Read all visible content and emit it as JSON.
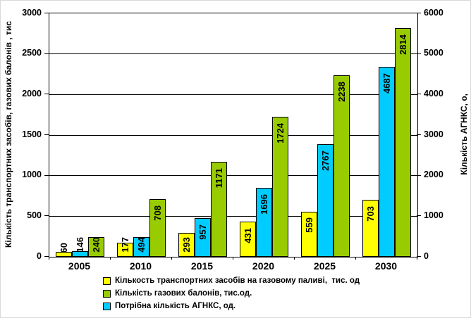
{
  "chart_data": {
    "type": "bar",
    "title": "",
    "categories": [
      "2005",
      "2010",
      "2015",
      "2020",
      "2025",
      "2030"
    ],
    "series": [
      {
        "name": "Кількость транспортних засобів на газовому паливі,  тис. од",
        "color": "#FFFF00",
        "axis": "left",
        "plot_position": 0,
        "values": [
          60,
          177,
          293,
          431,
          559,
          703
        ]
      },
      {
        "name": "Кількість газових балонів, тис.од.",
        "color": "#99CC00",
        "axis": "left",
        "plot_position": 2,
        "values": [
          240,
          708,
          1171,
          1724,
          2238,
          2814
        ]
      },
      {
        "name": "Потрібна кількість АГНКС, од.",
        "color": "#00CCFF",
        "axis": "right",
        "plot_position": 1,
        "values": [
          146,
          494,
          957,
          1696,
          2767,
          4687
        ]
      }
    ],
    "left_axis": {
      "title": "Кількість транспортних засобів, газових балонів , тис",
      "min": 0,
      "max": 3000,
      "step": 500,
      "tick_labels": [
        "0",
        "500",
        "1000",
        "1500",
        "2000",
        "2500",
        "3000"
      ]
    },
    "right_axis": {
      "title": "Кількість АГНКС, о,",
      "min": 0,
      "max": 6000,
      "step": 1000,
      "tick_labels": [
        "0",
        "1000",
        "2000",
        "3000",
        "4000",
        "5000",
        "6000"
      ]
    },
    "grid": true,
    "legend_position": "bottom",
    "data_labels": "rotated-vertical",
    "colors": {
      "bar_border": "#000000",
      "gridline": "#000000",
      "background": "#ffffff",
      "text": "#000000"
    }
  }
}
